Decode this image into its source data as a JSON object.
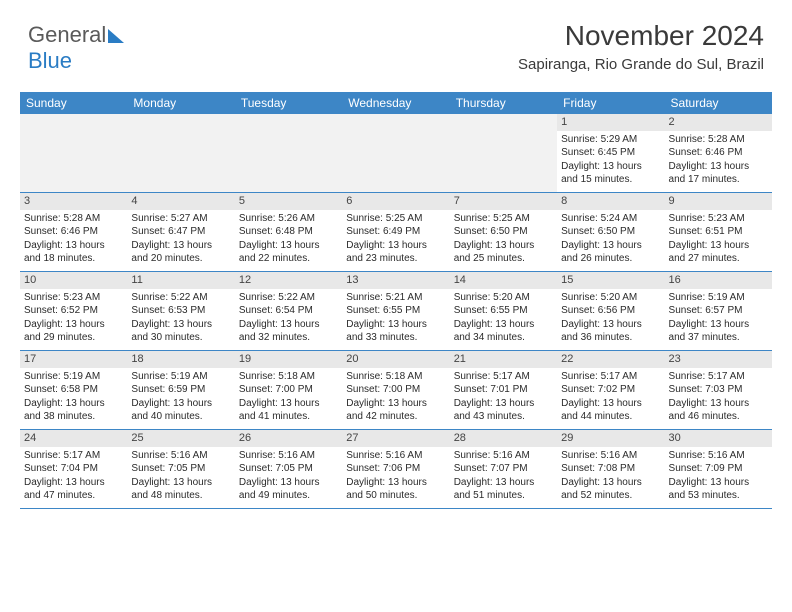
{
  "logo": {
    "textGray": "General",
    "textBlue": "Blue"
  },
  "header": {
    "month": "November 2024",
    "location": "Sapiranga, Rio Grande do Sul, Brazil"
  },
  "colors": {
    "headerBar": "#3d86c6",
    "greyBar": "#e8e8e8",
    "background": "#ffffff"
  },
  "dayNames": [
    "Sunday",
    "Monday",
    "Tuesday",
    "Wednesday",
    "Thursday",
    "Friday",
    "Saturday"
  ],
  "calendar": {
    "type": "table",
    "firstWeekBlanks": 5,
    "days": [
      {
        "n": 1,
        "sunrise": "5:29 AM",
        "sunset": "6:45 PM",
        "daylight": "13 hours and 15 minutes."
      },
      {
        "n": 2,
        "sunrise": "5:28 AM",
        "sunset": "6:46 PM",
        "daylight": "13 hours and 17 minutes."
      },
      {
        "n": 3,
        "sunrise": "5:28 AM",
        "sunset": "6:46 PM",
        "daylight": "13 hours and 18 minutes."
      },
      {
        "n": 4,
        "sunrise": "5:27 AM",
        "sunset": "6:47 PM",
        "daylight": "13 hours and 20 minutes."
      },
      {
        "n": 5,
        "sunrise": "5:26 AM",
        "sunset": "6:48 PM",
        "daylight": "13 hours and 22 minutes."
      },
      {
        "n": 6,
        "sunrise": "5:25 AM",
        "sunset": "6:49 PM",
        "daylight": "13 hours and 23 minutes."
      },
      {
        "n": 7,
        "sunrise": "5:25 AM",
        "sunset": "6:50 PM",
        "daylight": "13 hours and 25 minutes."
      },
      {
        "n": 8,
        "sunrise": "5:24 AM",
        "sunset": "6:50 PM",
        "daylight": "13 hours and 26 minutes."
      },
      {
        "n": 9,
        "sunrise": "5:23 AM",
        "sunset": "6:51 PM",
        "daylight": "13 hours and 27 minutes."
      },
      {
        "n": 10,
        "sunrise": "5:23 AM",
        "sunset": "6:52 PM",
        "daylight": "13 hours and 29 minutes."
      },
      {
        "n": 11,
        "sunrise": "5:22 AM",
        "sunset": "6:53 PM",
        "daylight": "13 hours and 30 minutes."
      },
      {
        "n": 12,
        "sunrise": "5:22 AM",
        "sunset": "6:54 PM",
        "daylight": "13 hours and 32 minutes."
      },
      {
        "n": 13,
        "sunrise": "5:21 AM",
        "sunset": "6:55 PM",
        "daylight": "13 hours and 33 minutes."
      },
      {
        "n": 14,
        "sunrise": "5:20 AM",
        "sunset": "6:55 PM",
        "daylight": "13 hours and 34 minutes."
      },
      {
        "n": 15,
        "sunrise": "5:20 AM",
        "sunset": "6:56 PM",
        "daylight": "13 hours and 36 minutes."
      },
      {
        "n": 16,
        "sunrise": "5:19 AM",
        "sunset": "6:57 PM",
        "daylight": "13 hours and 37 minutes."
      },
      {
        "n": 17,
        "sunrise": "5:19 AM",
        "sunset": "6:58 PM",
        "daylight": "13 hours and 38 minutes."
      },
      {
        "n": 18,
        "sunrise": "5:19 AM",
        "sunset": "6:59 PM",
        "daylight": "13 hours and 40 minutes."
      },
      {
        "n": 19,
        "sunrise": "5:18 AM",
        "sunset": "7:00 PM",
        "daylight": "13 hours and 41 minutes."
      },
      {
        "n": 20,
        "sunrise": "5:18 AM",
        "sunset": "7:00 PM",
        "daylight": "13 hours and 42 minutes."
      },
      {
        "n": 21,
        "sunrise": "5:17 AM",
        "sunset": "7:01 PM",
        "daylight": "13 hours and 43 minutes."
      },
      {
        "n": 22,
        "sunrise": "5:17 AM",
        "sunset": "7:02 PM",
        "daylight": "13 hours and 44 minutes."
      },
      {
        "n": 23,
        "sunrise": "5:17 AM",
        "sunset": "7:03 PM",
        "daylight": "13 hours and 46 minutes."
      },
      {
        "n": 24,
        "sunrise": "5:17 AM",
        "sunset": "7:04 PM",
        "daylight": "13 hours and 47 minutes."
      },
      {
        "n": 25,
        "sunrise": "5:16 AM",
        "sunset": "7:05 PM",
        "daylight": "13 hours and 48 minutes."
      },
      {
        "n": 26,
        "sunrise": "5:16 AM",
        "sunset": "7:05 PM",
        "daylight": "13 hours and 49 minutes."
      },
      {
        "n": 27,
        "sunrise": "5:16 AM",
        "sunset": "7:06 PM",
        "daylight": "13 hours and 50 minutes."
      },
      {
        "n": 28,
        "sunrise": "5:16 AM",
        "sunset": "7:07 PM",
        "daylight": "13 hours and 51 minutes."
      },
      {
        "n": 29,
        "sunrise": "5:16 AM",
        "sunset": "7:08 PM",
        "daylight": "13 hours and 52 minutes."
      },
      {
        "n": 30,
        "sunrise": "5:16 AM",
        "sunset": "7:09 PM",
        "daylight": "13 hours and 53 minutes."
      }
    ],
    "labels": {
      "sunrise": "Sunrise:",
      "sunset": "Sunset:",
      "daylight": "Daylight:"
    }
  }
}
